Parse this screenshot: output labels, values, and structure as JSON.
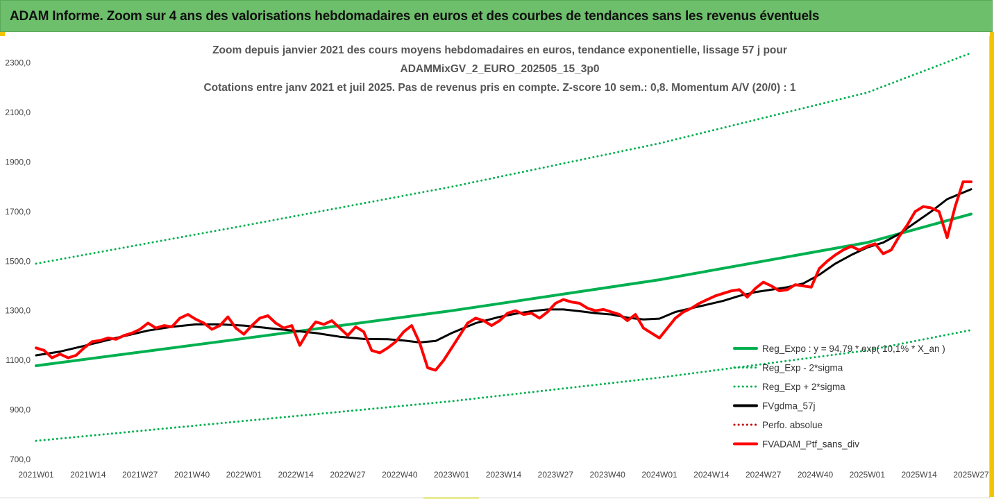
{
  "header": {
    "title": "ADAM Informe. Zoom sur 4 ans des valorisations hebdomadaires en euros et des courbes de tendances sans les revenus éventuels"
  },
  "colors": {
    "banner": "#6dbf6b",
    "reg_expo": "#00b050",
    "fvgdma": "#000000",
    "fvadam": "#ff0000",
    "accent": "#f2c300"
  },
  "chart_data": {
    "type": "line",
    "title_lines": [
      "Zoom depuis janvier 2021 des cours moyens hebdomadaires  en euros, tendance exponentielle, lissage 57 j pour",
      "ADAMMixGV_2_EURO_202505_15_3p0",
      "Cotations entre janv 2021 et juil 2025. Pas de revenus pris en compte. Z-score 10 sem.: 0,8. Momentum A/V (20/0) : 1"
    ],
    "x_tick_labels": [
      "2021W01",
      "2021W14",
      "2021W27",
      "2021W40",
      "2022W01",
      "2022W14",
      "2022W27",
      "2022W40",
      "2023W01",
      "2023W14",
      "2023W27",
      "2023W40",
      "2024W01",
      "2024W14",
      "2024W27",
      "2024W40",
      "2025W01",
      "2025W14",
      "2025W27"
    ],
    "y_tick_labels": [
      "700,0",
      "900,0",
      "1100,0",
      "1300,0",
      "1500,0",
      "1700,0",
      "1900,0",
      "2100,0",
      "2300,0"
    ],
    "ylim": [
      700,
      2380
    ],
    "xlim": [
      0,
      234
    ],
    "grid": false,
    "legend_position": "bottom-right",
    "series": [
      {
        "name": "Reg_Expo : y = 94,79 * exp( 10,1% * X_an )",
        "color": "#00b050",
        "style": "solid",
        "width": 4,
        "points": [
          [
            0,
            1078
          ],
          [
            52,
            1188
          ],
          [
            104,
            1300
          ],
          [
            156,
            1425
          ],
          [
            208,
            1575
          ],
          [
            234,
            1690
          ]
        ]
      },
      {
        "name": "Reg_Exp - 2*sigma",
        "color": "#00b050",
        "style": "dotted",
        "width": 3,
        "points": [
          [
            0,
            775
          ],
          [
            52,
            855
          ],
          [
            104,
            935
          ],
          [
            156,
            1030
          ],
          [
            208,
            1140
          ],
          [
            234,
            1222
          ]
        ]
      },
      {
        "name": "Reg_Exp + 2*sigma",
        "color": "#00b050",
        "style": "dotted",
        "width": 3,
        "points": [
          [
            0,
            1490
          ],
          [
            52,
            1643
          ],
          [
            104,
            1800
          ],
          [
            156,
            1975
          ],
          [
            208,
            2180
          ],
          [
            234,
            2340
          ]
        ]
      },
      {
        "name": "FVgdma_57j",
        "color": "#000000",
        "style": "solid",
        "width": 3,
        "points": [
          [
            0,
            1120
          ],
          [
            6,
            1135
          ],
          [
            12,
            1158
          ],
          [
            20,
            1190
          ],
          [
            28,
            1220
          ],
          [
            34,
            1235
          ],
          [
            40,
            1245
          ],
          [
            46,
            1245
          ],
          [
            52,
            1240
          ],
          [
            58,
            1230
          ],
          [
            64,
            1220
          ],
          [
            70,
            1210
          ],
          [
            76,
            1195
          ],
          [
            82,
            1186
          ],
          [
            88,
            1185
          ],
          [
            92,
            1180
          ],
          [
            96,
            1172
          ],
          [
            100,
            1178
          ],
          [
            104,
            1210
          ],
          [
            110,
            1250
          ],
          [
            116,
            1275
          ],
          [
            120,
            1288
          ],
          [
            124,
            1298
          ],
          [
            128,
            1305
          ],
          [
            132,
            1305
          ],
          [
            136,
            1298
          ],
          [
            140,
            1290
          ],
          [
            144,
            1285
          ],
          [
            148,
            1272
          ],
          [
            152,
            1265
          ],
          [
            156,
            1268
          ],
          [
            160,
            1295
          ],
          [
            164,
            1310
          ],
          [
            168,
            1325
          ],
          [
            172,
            1340
          ],
          [
            176,
            1360
          ],
          [
            180,
            1375
          ],
          [
            184,
            1385
          ],
          [
            188,
            1395
          ],
          [
            192,
            1410
          ],
          [
            196,
            1445
          ],
          [
            200,
            1490
          ],
          [
            204,
            1525
          ],
          [
            208,
            1555
          ],
          [
            212,
            1575
          ],
          [
            216,
            1610
          ],
          [
            220,
            1655
          ],
          [
            224,
            1700
          ],
          [
            228,
            1750
          ],
          [
            234,
            1790
          ]
        ]
      },
      {
        "name": "Perfo. absolue",
        "color": "#c00000",
        "style": "dotted",
        "width": 3,
        "points": []
      },
      {
        "name": "FVADAM_Ptf_sans_div",
        "color": "#ff0000",
        "style": "solid",
        "width": 4,
        "points": [
          [
            0,
            1150
          ],
          [
            2,
            1140
          ],
          [
            4,
            1110
          ],
          [
            6,
            1125
          ],
          [
            8,
            1110
          ],
          [
            10,
            1120
          ],
          [
            12,
            1150
          ],
          [
            14,
            1175
          ],
          [
            16,
            1180
          ],
          [
            18,
            1190
          ],
          [
            20,
            1185
          ],
          [
            22,
            1200
          ],
          [
            24,
            1210
          ],
          [
            26,
            1225
          ],
          [
            28,
            1250
          ],
          [
            30,
            1230
          ],
          [
            32,
            1240
          ],
          [
            34,
            1235
          ],
          [
            36,
            1270
          ],
          [
            38,
            1285
          ],
          [
            40,
            1265
          ],
          [
            42,
            1250
          ],
          [
            44,
            1225
          ],
          [
            46,
            1240
          ],
          [
            48,
            1275
          ],
          [
            50,
            1230
          ],
          [
            52,
            1205
          ],
          [
            54,
            1240
          ],
          [
            56,
            1270
          ],
          [
            58,
            1280
          ],
          [
            60,
            1250
          ],
          [
            62,
            1230
          ],
          [
            64,
            1240
          ],
          [
            66,
            1160
          ],
          [
            68,
            1215
          ],
          [
            70,
            1255
          ],
          [
            72,
            1245
          ],
          [
            74,
            1260
          ],
          [
            76,
            1230
          ],
          [
            78,
            1200
          ],
          [
            80,
            1235
          ],
          [
            82,
            1215
          ],
          [
            84,
            1140
          ],
          [
            86,
            1130
          ],
          [
            88,
            1150
          ],
          [
            90,
            1175
          ],
          [
            92,
            1215
          ],
          [
            94,
            1240
          ],
          [
            96,
            1170
          ],
          [
            98,
            1070
          ],
          [
            100,
            1060
          ],
          [
            102,
            1100
          ],
          [
            104,
            1150
          ],
          [
            106,
            1200
          ],
          [
            108,
            1250
          ],
          [
            110,
            1270
          ],
          [
            112,
            1260
          ],
          [
            114,
            1240
          ],
          [
            116,
            1260
          ],
          [
            118,
            1290
          ],
          [
            120,
            1300
          ],
          [
            122,
            1285
          ],
          [
            124,
            1290
          ],
          [
            126,
            1270
          ],
          [
            128,
            1295
          ],
          [
            130,
            1330
          ],
          [
            132,
            1345
          ],
          [
            134,
            1335
          ],
          [
            136,
            1330
          ],
          [
            138,
            1310
          ],
          [
            140,
            1300
          ],
          [
            142,
            1305
          ],
          [
            144,
            1295
          ],
          [
            146,
            1285
          ],
          [
            148,
            1260
          ],
          [
            150,
            1285
          ],
          [
            152,
            1230
          ],
          [
            154,
            1210
          ],
          [
            156,
            1190
          ],
          [
            158,
            1230
          ],
          [
            160,
            1270
          ],
          [
            162,
            1295
          ],
          [
            164,
            1310
          ],
          [
            166,
            1330
          ],
          [
            168,
            1345
          ],
          [
            170,
            1360
          ],
          [
            172,
            1370
          ],
          [
            174,
            1380
          ],
          [
            176,
            1385
          ],
          [
            178,
            1355
          ],
          [
            180,
            1390
          ],
          [
            182,
            1415
          ],
          [
            184,
            1400
          ],
          [
            186,
            1380
          ],
          [
            188,
            1385
          ],
          [
            190,
            1405
          ],
          [
            192,
            1400
          ],
          [
            194,
            1395
          ],
          [
            196,
            1470
          ],
          [
            198,
            1500
          ],
          [
            200,
            1525
          ],
          [
            202,
            1545
          ],
          [
            204,
            1560
          ],
          [
            206,
            1545
          ],
          [
            208,
            1560
          ],
          [
            210,
            1570
          ],
          [
            212,
            1530
          ],
          [
            214,
            1545
          ],
          [
            216,
            1600
          ],
          [
            218,
            1645
          ],
          [
            220,
            1700
          ],
          [
            222,
            1720
          ],
          [
            224,
            1715
          ],
          [
            226,
            1700
          ],
          [
            228,
            1595
          ],
          [
            230,
            1720
          ],
          [
            232,
            1820
          ],
          [
            234,
            1820
          ]
        ]
      }
    ]
  }
}
